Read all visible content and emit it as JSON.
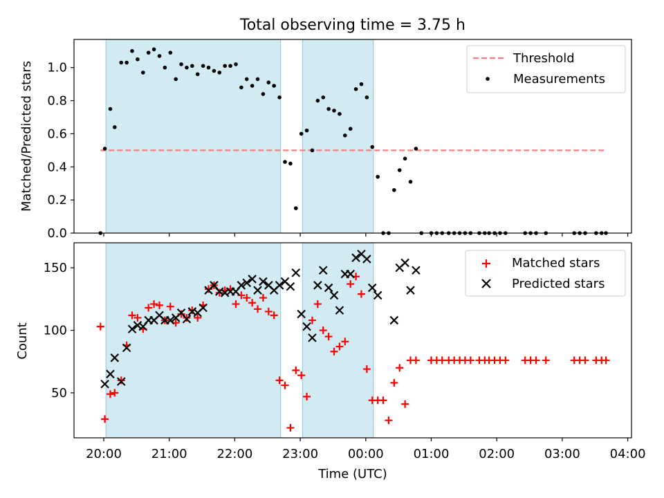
{
  "chart_data": [
    {
      "type": "scatter",
      "title": "Total observing time = 3.75 h",
      "xlabel": "",
      "ylabel": "Matched/Predicted stars",
      "ylim": [
        0,
        1.17
      ],
      "yticks": [
        0.0,
        0.2,
        0.4,
        0.6,
        0.8,
        1.0
      ],
      "ytick_labels": [
        "0.0",
        "0.2",
        "0.4",
        "0.6",
        "0.8",
        "1.0"
      ],
      "legend_position": "top-right",
      "legend": [
        "Threshold",
        "Measurements"
      ],
      "threshold": {
        "name": "Threshold",
        "value": 0.5,
        "x_start": "19:57",
        "x_end": "03:40",
        "color": "#f08080"
      },
      "shaded_ranges": [
        [
          "20:02",
          "22:42"
        ],
        [
          "23:02",
          "00:07"
        ]
      ],
      "shade_color": "#add8e6",
      "series": [
        {
          "name": "Measurements",
          "marker": "dot",
          "color": "#000000",
          "points": [
            [
              "19:57",
              0.0
            ],
            [
              "20:01",
              0.51
            ],
            [
              "20:06",
              0.75
            ],
            [
              "20:10",
              0.64
            ],
            [
              "20:16",
              1.03
            ],
            [
              "20:21",
              1.03
            ],
            [
              "20:26",
              1.1
            ],
            [
              "20:31",
              1.05
            ],
            [
              "20:36",
              0.97
            ],
            [
              "20:41",
              1.09
            ],
            [
              "20:46",
              1.11
            ],
            [
              "20:51",
              1.07
            ],
            [
              "20:56",
              1.0
            ],
            [
              "21:01",
              1.09
            ],
            [
              "21:06",
              0.93
            ],
            [
              "21:11",
              1.02
            ],
            [
              "21:16",
              1.0
            ],
            [
              "21:21",
              1.01
            ],
            [
              "21:26",
              0.96
            ],
            [
              "21:31",
              1.01
            ],
            [
              "21:36",
              1.0
            ],
            [
              "21:41",
              0.98
            ],
            [
              "21:46",
              0.97
            ],
            [
              "21:51",
              1.01
            ],
            [
              "21:56",
              1.01
            ],
            [
              "22:01",
              1.02
            ],
            [
              "22:06",
              0.88
            ],
            [
              "22:11",
              0.93
            ],
            [
              "22:16",
              0.89
            ],
            [
              "22:21",
              0.93
            ],
            [
              "22:26",
              0.84
            ],
            [
              "22:31",
              0.91
            ],
            [
              "22:36",
              0.89
            ],
            [
              "22:41",
              0.82
            ],
            [
              "22:46",
              0.43
            ],
            [
              "22:51",
              0.42
            ],
            [
              "22:56",
              0.15
            ],
            [
              "23:01",
              0.6
            ],
            [
              "23:06",
              0.62
            ],
            [
              "23:11",
              0.5
            ],
            [
              "23:16",
              0.8
            ],
            [
              "23:21",
              0.82
            ],
            [
              "23:26",
              0.75
            ],
            [
              "23:31",
              0.74
            ],
            [
              "23:36",
              0.72
            ],
            [
              "23:41",
              0.59
            ],
            [
              "23:46",
              0.63
            ],
            [
              "23:51",
              0.87
            ],
            [
              "23:56",
              0.9
            ],
            [
              "00:01",
              0.82
            ],
            [
              "00:06",
              0.52
            ],
            [
              "00:11",
              0.34
            ],
            [
              "00:16",
              0.0
            ],
            [
              "00:21",
              0.0
            ],
            [
              "00:26",
              0.26
            ],
            [
              "00:31",
              0.38
            ],
            [
              "00:36",
              0.45
            ],
            [
              "00:41",
              0.31
            ],
            [
              "00:46",
              0.51
            ],
            [
              "00:51",
              0.0
            ],
            [
              "01:00",
              0.0
            ],
            [
              "01:05",
              0.0
            ],
            [
              "01:10",
              0.0
            ],
            [
              "01:16",
              0.0
            ],
            [
              "01:21",
              0.0
            ],
            [
              "01:26",
              0.0
            ],
            [
              "01:31",
              0.0
            ],
            [
              "01:36",
              0.0
            ],
            [
              "01:44",
              0.0
            ],
            [
              "01:49",
              0.0
            ],
            [
              "01:53",
              0.0
            ],
            [
              "01:58",
              0.0
            ],
            [
              "02:03",
              0.0
            ],
            [
              "02:08",
              0.0
            ],
            [
              "02:26",
              0.0
            ],
            [
              "02:31",
              0.0
            ],
            [
              "02:36",
              0.0
            ],
            [
              "02:45",
              0.0
            ],
            [
              "03:11",
              0.0
            ],
            [
              "03:16",
              0.0
            ],
            [
              "03:21",
              0.0
            ],
            [
              "03:31",
              0.0
            ],
            [
              "03:36",
              0.0
            ],
            [
              "03:40",
              0.0
            ]
          ]
        }
      ]
    },
    {
      "type": "scatter",
      "title": "",
      "xlabel": "Time (UTC)",
      "ylabel": "Count",
      "ylim": [
        14,
        170
      ],
      "yticks": [
        50,
        100,
        150
      ],
      "ytick_labels": [
        "50",
        "100",
        "150"
      ],
      "xticks": [
        "20:00",
        "21:00",
        "22:00",
        "23:00",
        "00:00",
        "01:00",
        "02:00",
        "03:00",
        "04:00"
      ],
      "legend_position": "top-right",
      "legend": [
        "Matched stars",
        "Predicted stars"
      ],
      "shaded_ranges": [
        [
          "20:02",
          "22:42"
        ],
        [
          "23:02",
          "00:07"
        ]
      ],
      "shade_color": "#add8e6",
      "series": [
        {
          "name": "Matched stars",
          "marker": "plus",
          "color": "#ff0000",
          "points": [
            [
              "19:57",
              103
            ],
            [
              "20:01",
              29
            ],
            [
              "20:06",
              49
            ],
            [
              "20:10",
              50
            ],
            [
              "20:16",
              60
            ],
            [
              "20:21",
              88
            ],
            [
              "20:26",
              112
            ],
            [
              "20:31",
              110
            ],
            [
              "20:36",
              101
            ],
            [
              "20:41",
              118
            ],
            [
              "20:46",
              121
            ],
            [
              "20:51",
              120
            ],
            [
              "20:56",
              108
            ],
            [
              "21:01",
              119
            ],
            [
              "21:06",
              106
            ],
            [
              "21:11",
              113
            ],
            [
              "21:16",
              110
            ],
            [
              "21:21",
              116
            ],
            [
              "21:26",
              110
            ],
            [
              "21:31",
              120
            ],
            [
              "21:36",
              133
            ],
            [
              "21:41",
              136
            ],
            [
              "21:46",
              130
            ],
            [
              "21:51",
              132
            ],
            [
              "21:56",
              133
            ],
            [
              "22:01",
              121
            ],
            [
              "22:06",
              128
            ],
            [
              "22:11",
              126
            ],
            [
              "22:16",
              122
            ],
            [
              "22:21",
              117
            ],
            [
              "22:26",
              126
            ],
            [
              "22:31",
              115
            ],
            [
              "22:36",
              112
            ],
            [
              "22:41",
              60
            ],
            [
              "22:46",
              56
            ],
            [
              "22:51",
              22
            ],
            [
              "22:56",
              68
            ],
            [
              "23:01",
              64
            ],
            [
              "23:06",
              47
            ],
            [
              "23:11",
              108
            ],
            [
              "23:16",
              121
            ],
            [
              "23:21",
              100
            ],
            [
              "23:26",
              95
            ],
            [
              "23:31",
              83
            ],
            [
              "23:36",
              87
            ],
            [
              "23:41",
              91
            ],
            [
              "23:46",
              137
            ],
            [
              "23:51",
              143
            ],
            [
              "23:56",
              129
            ],
            [
              "00:01",
              69
            ],
            [
              "00:06",
              44
            ],
            [
              "00:11",
              44
            ],
            [
              "00:16",
              44
            ],
            [
              "00:21",
              28
            ],
            [
              "00:26",
              58
            ],
            [
              "00:31",
              70
            ],
            [
              "00:36",
              41
            ],
            [
              "00:41",
              76
            ],
            [
              "00:46",
              76
            ],
            [
              "01:00",
              76
            ],
            [
              "01:05",
              76
            ],
            [
              "01:10",
              76
            ],
            [
              "01:16",
              76
            ],
            [
              "01:21",
              76
            ],
            [
              "01:26",
              76
            ],
            [
              "01:31",
              76
            ],
            [
              "01:36",
              76
            ],
            [
              "01:44",
              76
            ],
            [
              "01:49",
              76
            ],
            [
              "01:53",
              76
            ],
            [
              "01:58",
              76
            ],
            [
              "02:03",
              76
            ],
            [
              "02:08",
              76
            ],
            [
              "02:26",
              76
            ],
            [
              "02:31",
              76
            ],
            [
              "02:36",
              76
            ],
            [
              "02:45",
              76
            ],
            [
              "03:11",
              76
            ],
            [
              "03:16",
              76
            ],
            [
              "03:21",
              76
            ],
            [
              "03:31",
              76
            ],
            [
              "03:36",
              76
            ],
            [
              "03:40",
              76
            ]
          ]
        },
        {
          "name": "Predicted stars",
          "marker": "x",
          "color": "#000000",
          "points": [
            [
              "20:01",
              57
            ],
            [
              "20:06",
              65
            ],
            [
              "20:10",
              78
            ],
            [
              "20:16",
              59
            ],
            [
              "20:21",
              86
            ],
            [
              "20:26",
              101
            ],
            [
              "20:31",
              104
            ],
            [
              "20:36",
              103
            ],
            [
              "20:41",
              108
            ],
            [
              "20:46",
              108
            ],
            [
              "20:51",
              112
            ],
            [
              "20:56",
              108
            ],
            [
              "21:01",
              108
            ],
            [
              "21:06",
              110
            ],
            [
              "21:11",
              114
            ],
            [
              "21:16",
              109
            ],
            [
              "21:21",
              115
            ],
            [
              "21:26",
              114
            ],
            [
              "21:31",
              118
            ],
            [
              "21:36",
              132
            ],
            [
              "21:41",
              136
            ],
            [
              "21:46",
              131
            ],
            [
              "21:51",
              130
            ],
            [
              "21:56",
              131
            ],
            [
              "22:01",
              131
            ],
            [
              "22:06",
              136
            ],
            [
              "22:11",
              138
            ],
            [
              "22:16",
              141
            ],
            [
              "22:21",
              132
            ],
            [
              "22:26",
              139
            ],
            [
              "22:31",
              136
            ],
            [
              "22:36",
              132
            ],
            [
              "22:41",
              136
            ],
            [
              "22:46",
              139
            ],
            [
              "22:51",
              135
            ],
            [
              "22:56",
              146
            ],
            [
              "23:01",
              113
            ],
            [
              "23:06",
              103
            ],
            [
              "23:11",
              94
            ],
            [
              "23:16",
              136
            ],
            [
              "23:21",
              148
            ],
            [
              "23:26",
              134
            ],
            [
              "23:31",
              128
            ],
            [
              "23:36",
              116
            ],
            [
              "23:41",
              145
            ],
            [
              "23:46",
              145
            ],
            [
              "23:51",
              158
            ],
            [
              "23:56",
              161
            ],
            [
              "00:01",
              157
            ],
            [
              "00:06",
              134
            ],
            [
              "00:11",
              128
            ],
            [
              "00:26",
              108
            ],
            [
              "00:31",
              150
            ],
            [
              "00:36",
              154
            ],
            [
              "00:41",
              132
            ],
            [
              "00:46",
              148
            ]
          ]
        }
      ]
    }
  ]
}
